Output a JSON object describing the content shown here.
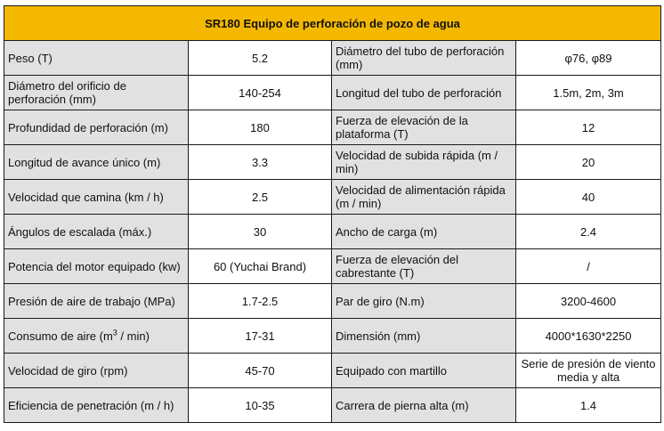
{
  "title": "SR180 Equipo de perforación de pozo de agua",
  "rows": [
    {
      "l1": "Peso (T)",
      "v1": "5.2",
      "l2": "Diámetro del tubo de perforación (mm)",
      "v2": "φ76, φ89"
    },
    {
      "l1": "Diámetro del orificio de perforación (mm)",
      "v1": "140-254",
      "l2": "Longitud del tubo de perforación",
      "v2": "1.5m, 2m, 3m"
    },
    {
      "l1": "Profundidad de perforación (m)",
      "v1": "180",
      "l2": "Fuerza de elevación de la plataforma (T)",
      "v2": "12"
    },
    {
      "l1": "Longitud de avance único (m)",
      "v1": "3.3",
      "l2": "Velocidad de subida rápida (m / min)",
      "v2": "20"
    },
    {
      "l1": "Velocidad que camina (km / h)",
      "v1": "2.5",
      "l2": "Velocidad de alimentación rápida (m / min)",
      "v2": "40"
    },
    {
      "l1": "Ángulos de escalada (máx.)",
      "v1": "30",
      "l2": "Ancho de carga (m)",
      "v2": "2.4"
    },
    {
      "l1": "Potencia del motor equipado (kw)",
      "v1": "60 (Yuchai Brand)",
      "l2": "Fuerza de elevación del cabrestante (T)",
      "v2": "/"
    },
    {
      "l1": "Presión de aire de trabajo (MPa)",
      "v1": "1.7-2.5",
      "l2": "Par de giro (N.m)",
      "v2": "3200-4600"
    },
    {
      "l1_pre": "Consumo de aire (m",
      "l1_sup": "3",
      "l1_post": " / min)",
      "v1": "17-31",
      "l2": "Dimensión (mm)",
      "v2": "4000*1630*2250"
    },
    {
      "l1": "Velocidad de giro (rpm)",
      "v1": "45-70",
      "l2": "Equipado con martillo",
      "v2": "Serie de presión de viento media y alta"
    },
    {
      "l1": "Eficiencia de penetración (m / h)",
      "v1": "10-35",
      "l2": "Carrera de pierna alta (m)",
      "v2": "1.4"
    }
  ]
}
